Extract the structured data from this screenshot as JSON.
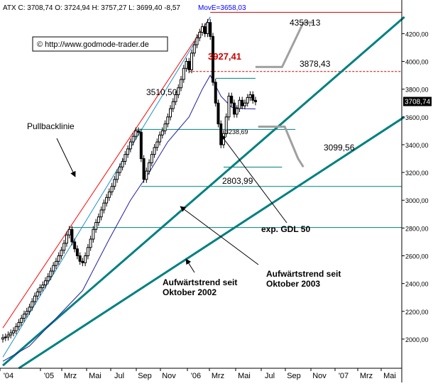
{
  "header": {
    "symbol": "ATX",
    "text": "ATX C: 3708,74 O: 3724,94 H: 3757,27 L: 3699,40 -8,57",
    "move_label": "MovE=3658,03"
  },
  "watermark": "© http://www.godmode-trader.de",
  "colors": {
    "background": "#ffffff",
    "candle": "#000000",
    "channel_upper": "#ff0000",
    "channel_inner": "#1e90c8",
    "moving_average": "#2020a0",
    "trend": "#008080",
    "level": "#008080",
    "resistance": "#cc0000",
    "projection": "#a0a0a0",
    "price_label_bg": "#000000",
    "move_label": "#0000ff"
  },
  "chart_data": {
    "type": "candlestick",
    "y_axis": {
      "ticks": [
        "2000,00",
        "2200,00",
        "2400,00",
        "2600,00",
        "2800,00",
        "3000,00",
        "3200,00",
        "3400,00",
        "3600,00",
        "3800,00",
        "4000,00",
        "4200,00"
      ],
      "tick_values": [
        2000,
        2200,
        2400,
        2600,
        2800,
        3000,
        3200,
        3400,
        3600,
        3800,
        4000,
        4200
      ],
      "range": [
        1790,
        4340
      ],
      "current_price_label": "3708,74",
      "current_price": 3708.74
    },
    "x_axis": {
      "ticks": [
        "'04",
        "'05",
        "Mrz",
        "Mai",
        "Jul",
        "Sep",
        "Nov",
        "'06",
        "Mrz",
        "Mai",
        "Jul",
        "Sep",
        "Nov",
        "'07",
        "Mrz",
        "Mai"
      ],
      "range_weeks": [
        0,
        150
      ]
    },
    "series_close": [
      [
        0,
        2010
      ],
      [
        1,
        2015
      ],
      [
        2,
        2030
      ],
      [
        3,
        2045
      ],
      [
        4,
        2060
      ],
      [
        5,
        2090
      ],
      [
        6,
        2120
      ],
      [
        7,
        2150
      ],
      [
        8,
        2180
      ],
      [
        9,
        2200
      ],
      [
        10,
        2230
      ],
      [
        11,
        2270
      ],
      [
        12,
        2310
      ],
      [
        13,
        2340
      ],
      [
        14,
        2370
      ],
      [
        15,
        2390
      ],
      [
        16,
        2420
      ],
      [
        17,
        2450
      ],
      [
        18,
        2490
      ],
      [
        19,
        2530
      ],
      [
        20,
        2560
      ],
      [
        21,
        2600
      ],
      [
        22,
        2640
      ],
      [
        23,
        2690
      ],
      [
        24,
        2750
      ],
      [
        25,
        2790
      ],
      [
        26,
        2700
      ],
      [
        27,
        2650
      ],
      [
        28,
        2600
      ],
      [
        29,
        2560
      ],
      [
        30,
        2550
      ],
      [
        31,
        2600
      ],
      [
        32,
        2660
      ],
      [
        33,
        2720
      ],
      [
        34,
        2790
      ],
      [
        35,
        2840
      ],
      [
        36,
        2880
      ],
      [
        37,
        2930
      ],
      [
        38,
        2980
      ],
      [
        39,
        3020
      ],
      [
        40,
        3060
      ],
      [
        41,
        3100
      ],
      [
        42,
        3150
      ],
      [
        43,
        3200
      ],
      [
        44,
        3240
      ],
      [
        45,
        3280
      ],
      [
        46,
        3330
      ],
      [
        47,
        3370
      ],
      [
        48,
        3420
      ],
      [
        49,
        3460
      ],
      [
        50,
        3500
      ],
      [
        51,
        3490
      ],
      [
        52,
        3300
      ],
      [
        53,
        3150
      ],
      [
        54,
        3210
      ],
      [
        55,
        3270
      ],
      [
        56,
        3330
      ],
      [
        57,
        3380
      ],
      [
        58,
        3420
      ],
      [
        59,
        3470
      ],
      [
        60,
        3500
      ],
      [
        61,
        3550
      ],
      [
        62,
        3600
      ],
      [
        63,
        3660
      ],
      [
        64,
        3710
      ],
      [
        65,
        3760
      ],
      [
        66,
        3810
      ],
      [
        67,
        3870
      ],
      [
        68,
        3950
      ],
      [
        69,
        4000
      ],
      [
        70,
        3940
      ],
      [
        71,
        4060
      ],
      [
        72,
        4120
      ],
      [
        73,
        4170
      ],
      [
        74,
        4210
      ],
      [
        75,
        4250
      ],
      [
        76,
        4200
      ],
      [
        77,
        4280
      ],
      [
        78,
        4180
      ],
      [
        79,
        3850
      ],
      [
        80,
        3700
      ],
      [
        81,
        3550
      ],
      [
        82,
        3400
      ],
      [
        83,
        3480
      ],
      [
        84,
        3600
      ],
      [
        85,
        3750
      ],
      [
        86,
        3700
      ],
      [
        87,
        3620
      ],
      [
        88,
        3660
      ],
      [
        89,
        3720
      ],
      [
        90,
        3680
      ],
      [
        91,
        3700
      ],
      [
        92,
        3740
      ],
      [
        93,
        3760
      ],
      [
        94,
        3720
      ],
      [
        95,
        3708.74
      ]
    ],
    "moving_average_points": [
      [
        0,
        1840
      ],
      [
        10,
        1950
      ],
      [
        20,
        2150
      ],
      [
        30,
        2350
      ],
      [
        40,
        2720
      ],
      [
        48,
        3000
      ],
      [
        55,
        3200
      ],
      [
        62,
        3420
      ],
      [
        70,
        3600
      ],
      [
        75,
        3800
      ],
      [
        78,
        3900
      ],
      [
        82,
        3750
      ],
      [
        86,
        3670
      ],
      [
        91,
        3660
      ],
      [
        95,
        3658.03
      ]
    ],
    "trendlines": [
      {
        "id": "upper-channel",
        "color_key": "channel_upper",
        "points": [
          [
            0,
            2080
          ],
          [
            78,
            4320
          ]
        ],
        "width": 1
      },
      {
        "id": "pullback-channel",
        "color_key": "channel_inner",
        "points": [
          [
            0,
            1870
          ],
          [
            78,
            4320
          ]
        ],
        "width": 1
      },
      {
        "id": "trend-2002",
        "color_key": "trend",
        "points": [
          [
            0,
            1810
          ],
          [
            151,
            4320
          ]
        ],
        "width": 3
      },
      {
        "id": "trend-2003",
        "color_key": "trend",
        "points": [
          [
            6,
            1790
          ],
          [
            151,
            3600
          ]
        ],
        "width": 3
      }
    ],
    "levels": [
      {
        "id": "level-4353",
        "value": 4353.13,
        "label": "4353,13",
        "x_from": 78,
        "x_to": 150,
        "color_key": "resistance",
        "dashed": false
      },
      {
        "id": "level-3927",
        "value": 3927.41,
        "label": "3927,41",
        "x_from": 70,
        "x_to": 150,
        "color_key": "resistance",
        "dashed": true
      },
      {
        "id": "level-3878",
        "value": 3878.43,
        "label": "3878,43",
        "x_from": 80,
        "x_to": 95,
        "color_key": "level",
        "dashed": false
      },
      {
        "id": "level-3510",
        "value": 3510.5,
        "label": "3510,50",
        "x_from": 50,
        "x_to": 110,
        "color_key": "level",
        "dashed": false
      },
      {
        "id": "level-3238",
        "value": 3238.69,
        "label": "3238,69",
        "x_from": 83,
        "x_to": 105,
        "color_key": "level",
        "dashed": false
      },
      {
        "id": "level-3099",
        "value": 3099.56,
        "label": "3099,56",
        "x_from": 52,
        "x_to": 150,
        "color_key": "level",
        "dashed": false
      },
      {
        "id": "level-2803",
        "value": 2803.99,
        "label": "2803,99",
        "x_from": 25,
        "x_to": 150,
        "color_key": "level",
        "dashed": false
      }
    ],
    "projections": [
      {
        "id": "projection-up",
        "points": [
          [
            95,
            3960
          ],
          [
            105,
            3960
          ],
          [
            113,
            4280
          ],
          [
            117,
            4280
          ]
        ]
      },
      {
        "id": "projection-down",
        "points": [
          [
            96,
            3530
          ],
          [
            106,
            3530
          ],
          [
            111,
            3300
          ],
          [
            113,
            3240
          ]
        ]
      }
    ],
    "annotations": [
      {
        "id": "annotation-pullbacklinie",
        "text": "Pullbacklinie",
        "x": 10,
        "y": 3250,
        "arrow_to": [
          24,
          2900
        ]
      },
      {
        "id": "annotation-gdl50",
        "text": "exp. GDL 50",
        "x": 82,
        "y": 2510,
        "arrow_to": [
          70,
          3220
        ]
      },
      {
        "id": "annotation-trend-2002",
        "lines": [
          "Aufwärtstrend seit",
          "Oktober 2002"
        ],
        "x": 58,
        "y": 2180,
        "arrow_to": [
          58,
          2400
        ]
      },
      {
        "id": "annotation-trend-2003",
        "lines": [
          "Aufwärtstrend seit",
          "Oktober 2003"
        ],
        "x": 90,
        "y": 2230,
        "arrow_to": [
          39,
          2700
        ]
      }
    ]
  }
}
